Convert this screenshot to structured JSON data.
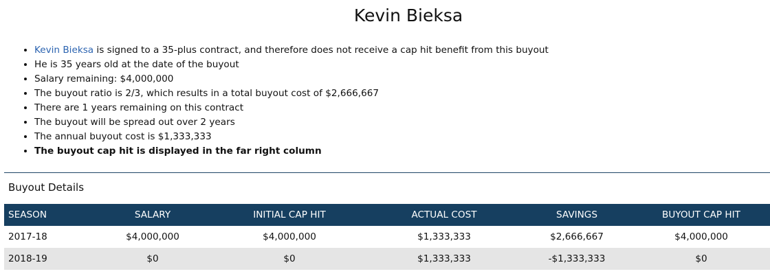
{
  "player_name": "Kevin Bieksa",
  "notes": {
    "line1_link": "Kevin Bieksa",
    "line1_rest": " is signed to a 35-plus contract, and therefore does not receive a cap hit benefit from this buyout",
    "line2": "He is 35 years old at the date of the buyout",
    "line3": "Salary remaining: $4,000,000",
    "line4": "The buyout ratio is 2/3, which results in a total buyout cost of $2,666,667",
    "line5": "There are 1 years remaining on this contract",
    "line6": "The buyout will be spread out over 2 years",
    "line7": "The annual buyout cost is $1,333,333",
    "line8": "The buyout cap hit is displayed in the far right column"
  },
  "section_title": "Buyout Details",
  "table": {
    "headers": [
      "SEASON",
      "SALARY",
      "INITIAL CAP HIT",
      "ACTUAL COST",
      "SAVINGS",
      "BUYOUT CAP HIT"
    ],
    "rows": [
      [
        "2017-18",
        "$4,000,000",
        "$4,000,000",
        "$1,333,333",
        "$2,666,667",
        "$4,000,000"
      ],
      [
        "2018-19",
        "$0",
        "$0",
        "$1,333,333",
        "-$1,333,333",
        "$0"
      ]
    ]
  },
  "colors": {
    "header_bg": "#163f60",
    "link": "#2b63b0",
    "alt_row": "#e5e5e5"
  }
}
